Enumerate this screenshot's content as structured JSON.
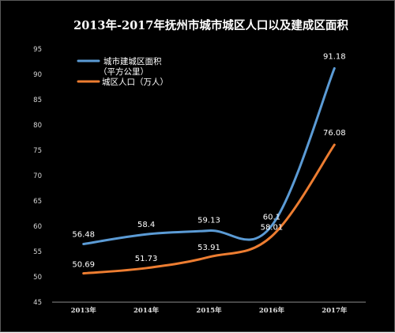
{
  "chart_data": {
    "type": "line",
    "title": "2013年-2017年抚州市城市城区人口以及建成区面积",
    "categories": [
      "2013年",
      "2014年",
      "2015年",
      "2016年",
      "2017年"
    ],
    "ylim": [
      45,
      95
    ],
    "yticks": [
      45,
      50,
      55,
      60,
      65,
      70,
      75,
      80,
      85,
      90,
      95
    ],
    "grid": false,
    "legend": "top-left",
    "series": [
      {
        "name": "城市建城区面积",
        "name_line2": "（平方公里）",
        "color": "#5b9bd5",
        "values": [
          56.48,
          58.4,
          59.13,
          60.1,
          91.18
        ],
        "labels": [
          "56.48",
          "58.4",
          "59.13",
          "60.1",
          "91.18"
        ]
      },
      {
        "name": "城区人口（万人）",
        "color": "#ed7d31",
        "values": [
          50.69,
          51.73,
          53.91,
          58.01,
          76.08
        ],
        "labels": [
          "50.69",
          "51.73",
          "53.91",
          "58.01",
          "76.08"
        ]
      }
    ]
  }
}
